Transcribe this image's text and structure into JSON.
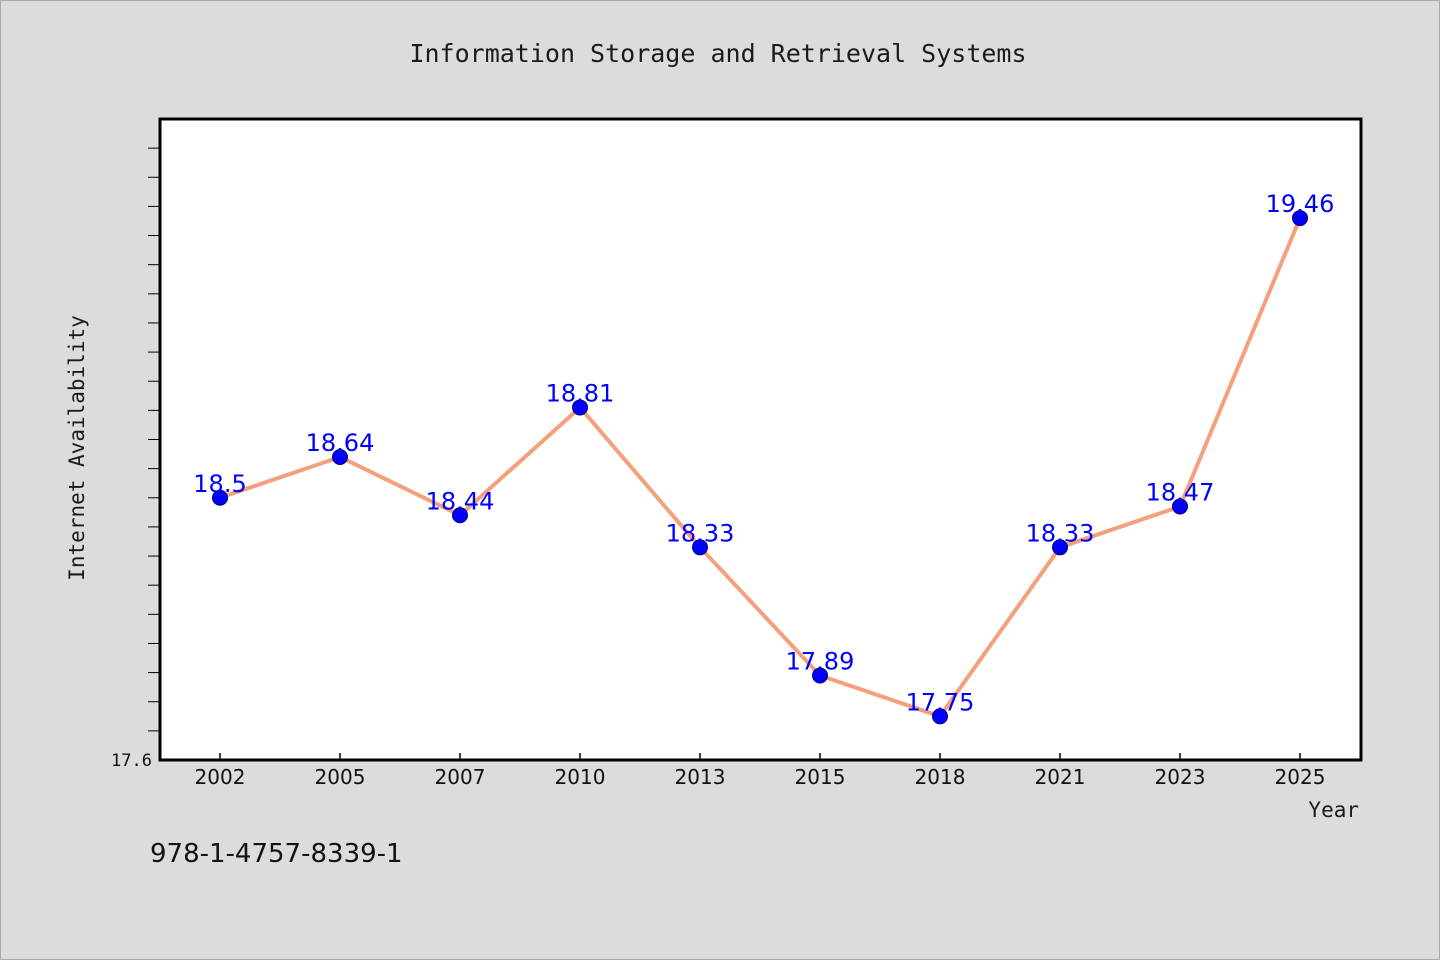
{
  "chart_data": {
    "type": "line",
    "title": "Information Storage and Retrieval Systems",
    "xlabel": "Year",
    "ylabel": "Internet Availability",
    "categories": [
      "2002",
      "2005",
      "2007",
      "2010",
      "2013",
      "2015",
      "2018",
      "2021",
      "2023",
      "2025"
    ],
    "series": [
      {
        "values": [
          18.5,
          18.64,
          18.44,
          18.81,
          18.33,
          17.89,
          17.75,
          18.33,
          18.47,
          19.46
        ],
        "labels": [
          "18.5",
          "18.64",
          "18.44",
          "18.81",
          "18.33",
          "17.89",
          "17.75",
          "18.33",
          "18.47",
          "19.46"
        ],
        "line_color": "#f4a07c",
        "marker_color": "#0000ff"
      }
    ],
    "ylim": [
      17.6,
      19.8
    ],
    "yticks_minor_step": 0.1,
    "ytick_labels": [
      "17.6"
    ],
    "grid": false
  },
  "footer": {
    "isbn": "978-1-4757-8339-1"
  }
}
